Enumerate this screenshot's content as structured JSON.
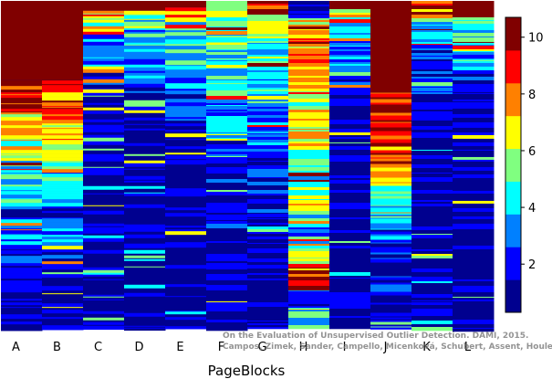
{
  "chart_data": {
    "type": "heatmap",
    "title": "",
    "xlabel": "PageBlocks",
    "ylabel": "",
    "categories": [
      "A",
      "B",
      "C",
      "D",
      "E",
      "F",
      "G",
      "H",
      "I",
      "J",
      "K",
      "L"
    ],
    "colorbar": {
      "ticks": [
        2,
        4,
        6,
        8,
        10
      ],
      "range": [
        0.3,
        10.7
      ],
      "colormap": [
        "#00008f",
        "#0000ff",
        "#0080ff",
        "#00ffff",
        "#80ff80",
        "#ffff00",
        "#ff8000",
        "#ff0000",
        "#800000"
      ]
    },
    "columns": [
      {
        "name": "A",
        "top_saturated_fraction": 0.24,
        "bands": [
          [
            0.26,
            9
          ],
          [
            0.29,
            8
          ],
          [
            0.33,
            8.6
          ],
          [
            0.38,
            7
          ],
          [
            0.42,
            8
          ],
          [
            0.47,
            6
          ],
          [
            0.5,
            5
          ],
          [
            0.56,
            4
          ],
          [
            0.62,
            4
          ],
          [
            0.66,
            2
          ],
          [
            0.74,
            3
          ],
          [
            0.8,
            2
          ],
          [
            0.86,
            1
          ],
          [
            1,
            1
          ]
        ]
      },
      {
        "name": "B",
        "top_saturated_fraction": 0.24,
        "bands": [
          [
            0.26,
            9
          ],
          [
            0.3,
            8
          ],
          [
            0.34,
            8.6
          ],
          [
            0.39,
            7
          ],
          [
            0.43,
            8
          ],
          [
            0.47,
            6
          ],
          [
            0.51,
            5
          ],
          [
            0.56,
            4
          ],
          [
            0.62,
            4
          ],
          [
            0.67,
            2
          ],
          [
            0.74,
            3
          ],
          [
            0.8,
            2
          ],
          [
            0.86,
            1
          ],
          [
            1,
            1
          ]
        ]
      },
      {
        "name": "C",
        "top_saturated_fraction": 0.03,
        "bands": [
          [
            0.06,
            7
          ],
          [
            0.1,
            6
          ],
          [
            0.16,
            3
          ],
          [
            0.22,
            3
          ],
          [
            0.3,
            2
          ],
          [
            0.4,
            1
          ],
          [
            0.55,
            1
          ],
          [
            0.7,
            0.8
          ],
          [
            0.85,
            0.7
          ],
          [
            1,
            0.6
          ]
        ]
      },
      {
        "name": "D",
        "top_saturated_fraction": 0.03,
        "bands": [
          [
            0.08,
            5
          ],
          [
            0.15,
            4
          ],
          [
            0.25,
            3
          ],
          [
            0.34,
            2
          ],
          [
            0.45,
            1
          ],
          [
            0.6,
            0.8
          ],
          [
            0.8,
            0.7
          ],
          [
            1,
            0.6
          ]
        ]
      },
      {
        "name": "E",
        "top_saturated_fraction": 0.02,
        "bands": [
          [
            0.05,
            8
          ],
          [
            0.1,
            5
          ],
          [
            0.2,
            4
          ],
          [
            0.28,
            3
          ],
          [
            0.36,
            2
          ],
          [
            0.46,
            1
          ],
          [
            0.62,
            0.8
          ],
          [
            0.8,
            0.7
          ],
          [
            1,
            0.6
          ]
        ]
      },
      {
        "name": "F",
        "top_saturated_fraction": 0.0,
        "bands": [
          [
            0.03,
            6
          ],
          [
            0.1,
            6
          ],
          [
            0.2,
            5
          ],
          [
            0.3,
            4
          ],
          [
            0.42,
            3
          ],
          [
            0.55,
            2
          ],
          [
            0.7,
            1.5
          ],
          [
            0.85,
            1
          ],
          [
            1,
            0.8
          ]
        ]
      },
      {
        "name": "G",
        "top_saturated_fraction": 0.0,
        "bands": [
          [
            0.04,
            9
          ],
          [
            0.1,
            6
          ],
          [
            0.2,
            5
          ],
          [
            0.32,
            4
          ],
          [
            0.45,
            3
          ],
          [
            0.58,
            2
          ],
          [
            0.72,
            1.2
          ],
          [
            0.86,
            0.9
          ],
          [
            1,
            0.7
          ]
        ]
      },
      {
        "name": "H",
        "top_saturated_fraction": 0.0,
        "bands": [
          [
            0.05,
            1
          ],
          [
            0.15,
            7
          ],
          [
            0.25,
            8
          ],
          [
            0.35,
            6
          ],
          [
            0.45,
            7
          ],
          [
            0.55,
            5
          ],
          [
            0.65,
            6
          ],
          [
            0.75,
            4
          ],
          [
            0.82,
            6
          ],
          [
            0.88,
            9
          ],
          [
            0.94,
            3
          ],
          [
            1,
            4
          ]
        ]
      },
      {
        "name": "I",
        "top_saturated_fraction": 0.0,
        "bands": [
          [
            0.02,
            9
          ],
          [
            0.05,
            7
          ],
          [
            0.12,
            4
          ],
          [
            0.2,
            3
          ],
          [
            0.3,
            2
          ],
          [
            0.42,
            1
          ],
          [
            0.56,
            1
          ],
          [
            0.7,
            0.9
          ],
          [
            0.85,
            0.8
          ],
          [
            1,
            0.7
          ]
        ]
      },
      {
        "name": "J",
        "top_saturated_fraction": 0.28,
        "bands": [
          [
            0.44,
            9
          ],
          [
            0.5,
            8
          ],
          [
            0.56,
            7
          ],
          [
            0.62,
            5
          ],
          [
            0.68,
            4
          ],
          [
            0.74,
            3
          ],
          [
            0.8,
            2
          ],
          [
            0.88,
            1.5
          ],
          [
            1,
            1
          ]
        ]
      },
      {
        "name": "K",
        "top_saturated_fraction": 0.0,
        "bands": [
          [
            0.02,
            9
          ],
          [
            0.06,
            7
          ],
          [
            0.12,
            4
          ],
          [
            0.2,
            3
          ],
          [
            0.3,
            2
          ],
          [
            0.42,
            1
          ],
          [
            0.56,
            1
          ],
          [
            0.7,
            0.9
          ],
          [
            0.85,
            0.8
          ],
          [
            1,
            0.7
          ]
        ]
      },
      {
        "name": "L",
        "top_saturated_fraction": 0.05,
        "bands": [
          [
            0.08,
            5
          ],
          [
            0.14,
            4
          ],
          [
            0.22,
            3
          ],
          [
            0.3,
            2
          ],
          [
            0.4,
            1
          ],
          [
            0.55,
            0.9
          ],
          [
            0.7,
            0.8
          ],
          [
            0.85,
            0.7
          ],
          [
            1,
            0.6
          ]
        ]
      }
    ]
  },
  "watermark": {
    "line1": "On the Evaluation of Unsupervised Outlier Detection. DAMI, 2015.",
    "line2": "Campos, Zimek, Sander, Campello, Micenková, Schubert, Assent, Houle"
  }
}
